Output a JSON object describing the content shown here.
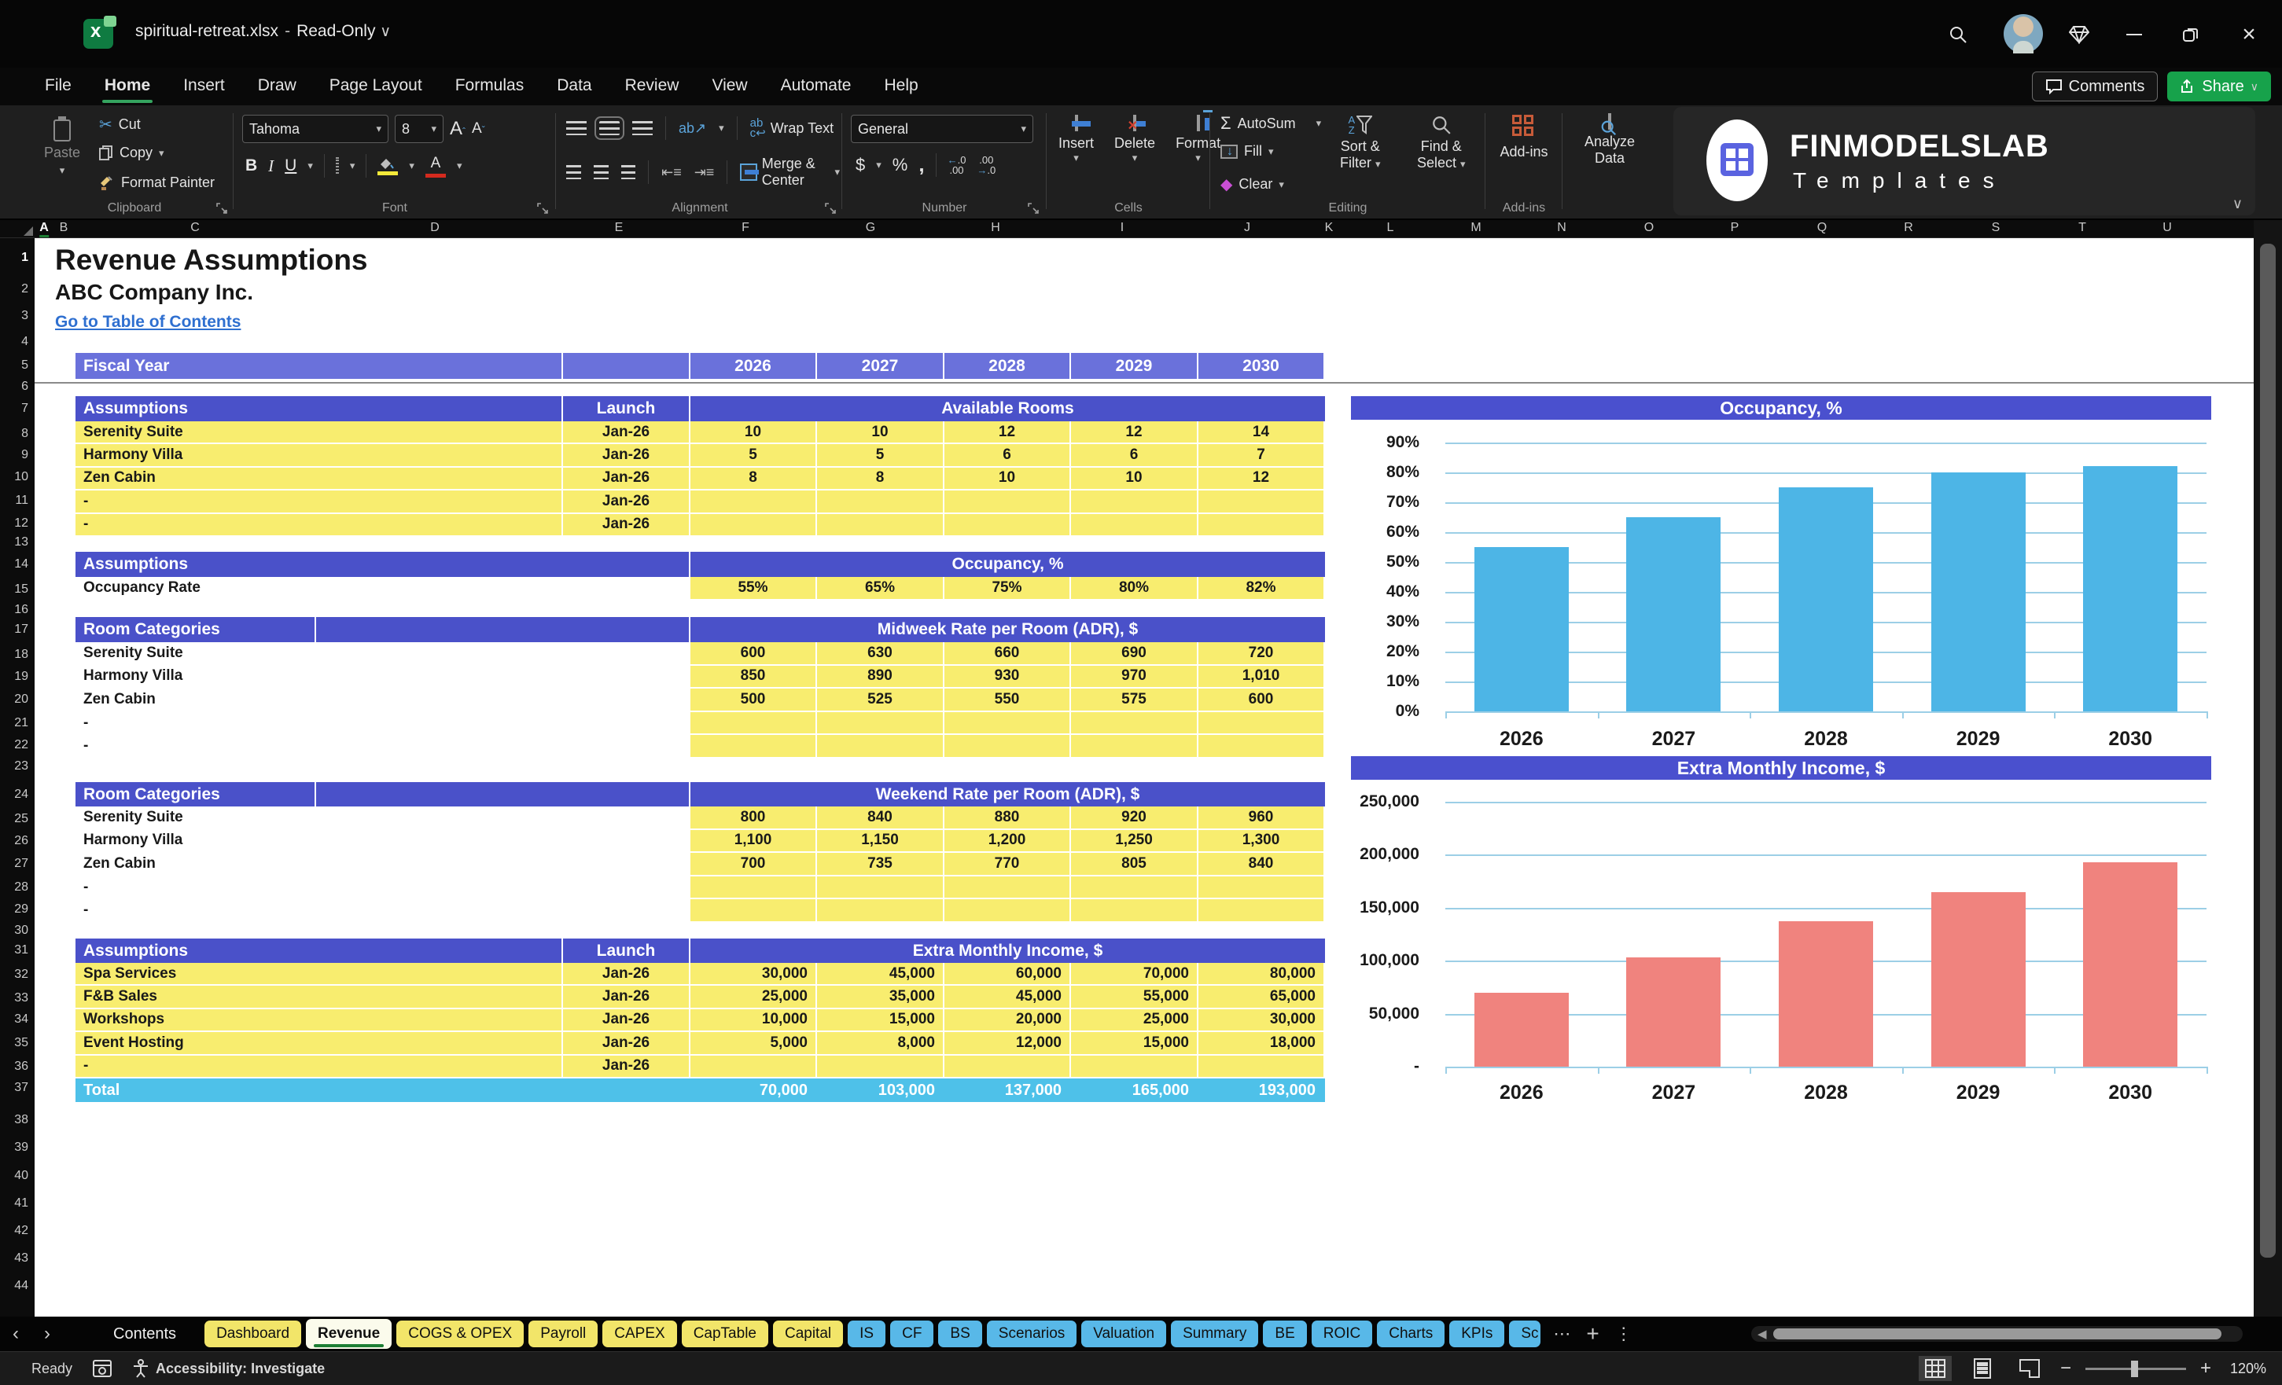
{
  "titlebar": {
    "filename": "spiritual-retreat.xlsx",
    "separator": "-",
    "mode": "Read-Only"
  },
  "window": {
    "comments_label": "Comments",
    "share_label": "Share"
  },
  "menu": {
    "items": [
      "File",
      "Home",
      "Insert",
      "Draw",
      "Page Layout",
      "Formulas",
      "Data",
      "Review",
      "View",
      "Automate",
      "Help"
    ],
    "active": "Home"
  },
  "ribbon": {
    "clipboard": {
      "group_label": "Clipboard",
      "paste": "Paste",
      "cut": "Cut",
      "copy": "Copy",
      "format_painter": "Format Painter"
    },
    "font": {
      "group_label": "Font",
      "font_name": "Tahoma",
      "font_size": "8"
    },
    "alignment": {
      "group_label": "Alignment",
      "wrap_text": "Wrap Text",
      "merge_center": "Merge & Center"
    },
    "number": {
      "group_label": "Number",
      "format": "General"
    },
    "cells": {
      "group_label": "Cells",
      "insert": "Insert",
      "delete": "Delete",
      "format": "Format"
    },
    "editing": {
      "group_label": "Editing",
      "autosum": "AutoSum",
      "fill": "Fill",
      "clear": "Clear",
      "sort_line1": "Sort &",
      "sort_line2": "Filter",
      "find_line1": "Find &",
      "find_line2": "Select"
    },
    "addins": {
      "group_label": "Add-ins",
      "addins": "Add-ins",
      "analyze_line1": "Analyze",
      "analyze_line2": "Data"
    }
  },
  "logo": {
    "title": "FINMODELSLAB",
    "subtitle": "Templates"
  },
  "colors": {
    "header_blue": "#4a51c9",
    "fiscal_blue": "#6a71db",
    "cell_yellow": "#f8ed6f",
    "total_blue": "#4ec1e9",
    "share_green": "#17a24b",
    "occupancy_bar": "#4DB5E6",
    "income_bar": "#F0837E"
  },
  "sheet": {
    "title": "Revenue Assumptions",
    "company": "ABC Company Inc.",
    "toc_link": "Go to Table of Contents",
    "columns": [
      "A",
      "B",
      "C",
      "D",
      "E",
      "F",
      "G",
      "H",
      "I",
      "J",
      "K",
      "L",
      "M",
      "N",
      "O",
      "P",
      "Q",
      "R",
      "S",
      "T",
      "U"
    ],
    "row_count": 44,
    "fiscal": {
      "label": "Fiscal Year",
      "years": [
        "2026",
        "2027",
        "2028",
        "2029",
        "2030"
      ]
    }
  },
  "tables": {
    "available_rooms": {
      "header": {
        "col1": "Assumptions",
        "col2": "Launch",
        "values": "Available Rooms"
      },
      "rows": [
        {
          "name": "Serenity Suite",
          "launch": "Jan-26",
          "values": [
            "10",
            "10",
            "12",
            "12",
            "14"
          ]
        },
        {
          "name": "Harmony Villa",
          "launch": "Jan-26",
          "values": [
            "5",
            "5",
            "6",
            "6",
            "7"
          ]
        },
        {
          "name": "Zen Cabin",
          "launch": "Jan-26",
          "values": [
            "8",
            "8",
            "10",
            "10",
            "12"
          ]
        },
        {
          "name": "-",
          "launch": "Jan-26",
          "values": [
            "",
            "",
            "",
            "",
            ""
          ]
        },
        {
          "name": "-",
          "launch": "Jan-26",
          "values": [
            "",
            "",
            "",
            "",
            ""
          ]
        }
      ]
    },
    "occupancy": {
      "header": {
        "col1": "Assumptions",
        "values": "Occupancy, %"
      },
      "rows": [
        {
          "name": "Occupancy Rate",
          "values": [
            "55%",
            "65%",
            "75%",
            "80%",
            "82%"
          ]
        }
      ]
    },
    "midweek": {
      "header": {
        "col1": "Room Categories",
        "values": "Midweek Rate per Room (ADR), $"
      },
      "rows": [
        {
          "name": "Serenity Suite",
          "values": [
            "600",
            "630",
            "660",
            "690",
            "720"
          ]
        },
        {
          "name": "Harmony Villa",
          "values": [
            "850",
            "890",
            "930",
            "970",
            "1,010"
          ]
        },
        {
          "name": "Zen Cabin",
          "values": [
            "500",
            "525",
            "550",
            "575",
            "600"
          ]
        },
        {
          "name": "-",
          "values": [
            "",
            "",
            "",
            "",
            ""
          ]
        },
        {
          "name": "-",
          "values": [
            "",
            "",
            "",
            "",
            ""
          ]
        }
      ]
    },
    "weekend": {
      "header": {
        "col1": "Room Categories",
        "values": "Weekend Rate per Room (ADR), $"
      },
      "rows": [
        {
          "name": "Serenity Suite",
          "values": [
            "800",
            "840",
            "880",
            "920",
            "960"
          ]
        },
        {
          "name": "Harmony Villa",
          "values": [
            "1,100",
            "1,150",
            "1,200",
            "1,250",
            "1,300"
          ]
        },
        {
          "name": "Zen Cabin",
          "values": [
            "700",
            "735",
            "770",
            "805",
            "840"
          ]
        },
        {
          "name": "-",
          "values": [
            "",
            "",
            "",
            "",
            ""
          ]
        },
        {
          "name": "-",
          "values": [
            "",
            "",
            "",
            "",
            ""
          ]
        }
      ]
    },
    "extra_income": {
      "header": {
        "col1": "Assumptions",
        "col2": "Launch",
        "values": "Extra Monthly Income, $"
      },
      "rows": [
        {
          "name": "Spa Services",
          "launch": "Jan-26",
          "values": [
            "30,000",
            "45,000",
            "60,000",
            "70,000",
            "80,000"
          ]
        },
        {
          "name": "F&B Sales",
          "launch": "Jan-26",
          "values": [
            "25,000",
            "35,000",
            "45,000",
            "55,000",
            "65,000"
          ]
        },
        {
          "name": "Workshops",
          "launch": "Jan-26",
          "values": [
            "10,000",
            "15,000",
            "20,000",
            "25,000",
            "30,000"
          ]
        },
        {
          "name": "Event Hosting",
          "launch": "Jan-26",
          "values": [
            "5,000",
            "8,000",
            "12,000",
            "15,000",
            "18,000"
          ]
        },
        {
          "name": "-",
          "launch": "Jan-26",
          "values": [
            "",
            "",
            "",
            "",
            ""
          ]
        }
      ],
      "total": {
        "label": "Total",
        "values": [
          "70,000",
          "103,000",
          "137,000",
          "165,000",
          "193,000"
        ]
      }
    }
  },
  "chart_data": [
    {
      "type": "bar",
      "title": "Occupancy, %",
      "categories": [
        "2026",
        "2027",
        "2028",
        "2029",
        "2030"
      ],
      "values": [
        55,
        65,
        75,
        80,
        82
      ],
      "ylim": [
        0,
        90
      ],
      "ytick": 10,
      "grid": true,
      "legend": "none",
      "bar_color": "#4DB5E6",
      "tick_labels": [
        "0%",
        "10%",
        "20%",
        "30%",
        "40%",
        "50%",
        "60%",
        "70%",
        "80%",
        "90%"
      ]
    },
    {
      "type": "bar",
      "title": "Extra Monthly Income, $",
      "categories": [
        "2026",
        "2027",
        "2028",
        "2029",
        "2030"
      ],
      "values": [
        70000,
        103000,
        137000,
        165000,
        193000
      ],
      "ylim": [
        0,
        250000
      ],
      "ytick": 50000,
      "grid": true,
      "legend": "none",
      "bar_color": "#F0837E",
      "tick_labels": [
        "-",
        "50,000",
        "100,000",
        "150,000",
        "200,000",
        "250,000"
      ]
    }
  ],
  "tabs": {
    "contents": "Contents",
    "overflow": "⋯",
    "list": [
      {
        "label": "Dashboard",
        "color": "yellow"
      },
      {
        "label": "Revenue",
        "color": "active"
      },
      {
        "label": "COGS & OPEX",
        "color": "yellow"
      },
      {
        "label": "Payroll",
        "color": "yellow"
      },
      {
        "label": "CAPEX",
        "color": "yellow"
      },
      {
        "label": "CapTable",
        "color": "yellow"
      },
      {
        "label": "Capital",
        "color": "yellow"
      },
      {
        "label": "IS",
        "color": "blue"
      },
      {
        "label": "CF",
        "color": "blue"
      },
      {
        "label": "BS",
        "color": "blue"
      },
      {
        "label": "Scenarios",
        "color": "blue"
      },
      {
        "label": "Valuation",
        "color": "blue"
      },
      {
        "label": "Summary",
        "color": "blue"
      },
      {
        "label": "BE",
        "color": "blue"
      },
      {
        "label": "ROIC",
        "color": "blue"
      },
      {
        "label": "Charts",
        "color": "blue"
      },
      {
        "label": "KPIs",
        "color": "blue"
      },
      {
        "label": "Sc",
        "color": "blue",
        "clipped": true
      }
    ]
  },
  "status": {
    "ready": "Ready",
    "accessibility": "Accessibility: Investigate",
    "zoom": "120%"
  }
}
